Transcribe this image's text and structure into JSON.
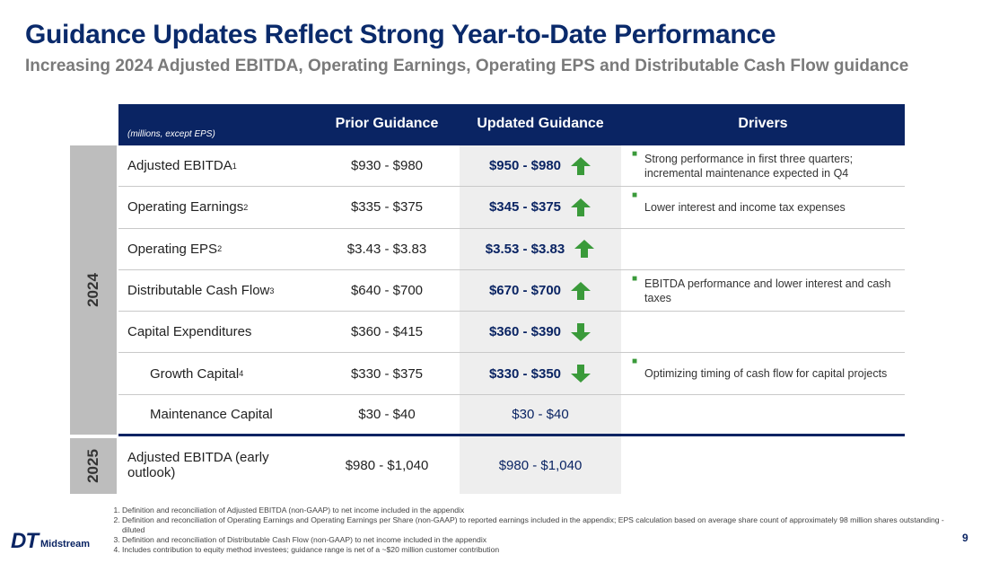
{
  "title": "Guidance Updates Reflect Strong Year-to-Date Performance",
  "subtitle": "Increasing 2024 Adjusted EBITDA, Operating Earnings, Operating EPS and Distributable Cash Flow guidance",
  "table": {
    "units": "(millions, except EPS)",
    "col_prior": "Prior Guidance",
    "col_updated": "Updated Guidance",
    "col_drivers": "Drivers",
    "year_2024": "2024",
    "year_2025": "2025",
    "rows": [
      {
        "label": "Adjusted EBITDA",
        "sup": "1",
        "prior": "$930 - $980",
        "updated": "$950 - $980",
        "direction": "up",
        "driver": "Strong performance in first three quarters; incremental maintenance expected in Q4"
      },
      {
        "label": "Operating Earnings",
        "sup": "2",
        "prior": "$335 - $375",
        "updated": "$345 - $375",
        "direction": "up",
        "driver": "Lower interest and income tax expenses"
      },
      {
        "label": "Operating EPS",
        "sup": "2",
        "prior": "$3.43 - $3.83",
        "updated": "$3.53 - $3.83",
        "direction": "up",
        "driver": ""
      },
      {
        "label": "Distributable Cash Flow",
        "sup": "3",
        "prior": "$640 - $700",
        "updated": "$670 - $700",
        "direction": "up",
        "driver": "EBITDA performance and lower interest and cash taxes"
      },
      {
        "label": "Capital Expenditures",
        "sup": "",
        "prior": "$360 - $415",
        "updated": "$360 - $390",
        "direction": "down",
        "driver": ""
      },
      {
        "label": "Growth Capital",
        "sup": "4",
        "prior": "$330 - $375",
        "updated": "$330 - $350",
        "direction": "down",
        "driver": "Optimizing timing of cash flow for capital projects"
      },
      {
        "label": "Maintenance Capital",
        "sup": "",
        "prior": "$30 - $40",
        "updated": "$30 - $40",
        "direction": "",
        "driver": ""
      }
    ],
    "row_2025": {
      "label": "Adjusted EBITDA (early outlook)",
      "prior": "$980 - $1,040",
      "updated": "$980 - $1,040"
    }
  },
  "footnotes": [
    "Definition and reconciliation of Adjusted EBITDA (non-GAAP) to net income included in the appendix",
    "Definition and reconciliation of Operating Earnings and Operating Earnings per Share (non-GAAP) to reported earnings included in the appendix; EPS calculation based on average share count of approximately 98 million shares outstanding - diluted",
    "Definition and reconciliation of Distributable Cash Flow (non-GAAP) to net income included in the appendix",
    "Includes contribution to equity method investees; guidance range is net of a ~$20 million customer contribution"
  ],
  "logo": {
    "mark": "DT",
    "text": "Midstream"
  },
  "page_number": "9",
  "colors": {
    "navy": "#0a2463",
    "green": "#3a9a3a",
    "gray": "#bdbdbd"
  }
}
